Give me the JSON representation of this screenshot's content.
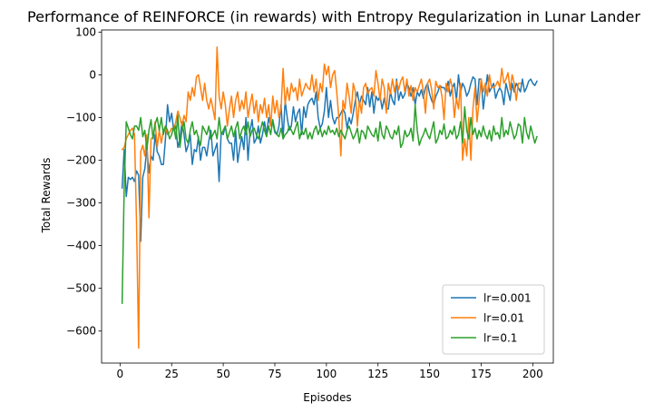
{
  "chart_data": {
    "type": "line",
    "title": "Performance of REINFORCE (in rewards) with Entropy Regularization in Lunar Lander",
    "xlabel": "Episodes",
    "ylabel": "Total Rewards",
    "xlim": [
      -8.95,
      209.95
    ],
    "ylim": [
      -675,
      105
    ],
    "xticks": [
      0,
      25,
      50,
      75,
      100,
      125,
      150,
      175,
      200
    ],
    "yticks": [
      -600,
      -500,
      -400,
      -300,
      -200,
      -100,
      0,
      100
    ],
    "ytick_labels": [
      "−600",
      "−500",
      "−400",
      "−300",
      "−200",
      "−100",
      "0",
      "100"
    ],
    "grid": false,
    "legend_position": "lower right",
    "series": [
      {
        "name": "lr=0.001",
        "color": "#1f77b4",
        "x_start": 1,
        "values": [
          -265,
          -175,
          -285,
          -240,
          -245,
          -240,
          -250,
          -225,
          -235,
          -390,
          -240,
          -220,
          -170,
          -230,
          -190,
          -200,
          -140,
          -180,
          -190,
          -210,
          -210,
          -150,
          -70,
          -110,
          -90,
          -130,
          -120,
          -170,
          -150,
          -110,
          -140,
          -180,
          -165,
          -140,
          -210,
          -175,
          -180,
          -145,
          -200,
          -170,
          -170,
          -190,
          -155,
          -130,
          -190,
          -175,
          -160,
          -250,
          -135,
          -140,
          -120,
          -150,
          -160,
          -160,
          -200,
          -130,
          -205,
          -170,
          -145,
          -175,
          -100,
          -200,
          -130,
          -105,
          -160,
          -150,
          -120,
          -160,
          -140,
          -110,
          -140,
          -100,
          -120,
          -110,
          -135,
          -140,
          -120,
          -70,
          -150,
          -60,
          -100,
          -130,
          -120,
          -75,
          -110,
          -90,
          -80,
          -140,
          -75,
          -100,
          -70,
          -60,
          -55,
          -70,
          -40,
          -100,
          -125,
          -115,
          -85,
          -30,
          -100,
          -60,
          -100,
          -115,
          -100,
          -100,
          -90,
          -80,
          -90,
          -125,
          -100,
          -115,
          -90,
          -60,
          -40,
          -70,
          -50,
          -60,
          -70,
          -30,
          -75,
          -40,
          -90,
          -50,
          -60,
          -50,
          -80,
          -55,
          -80,
          -80,
          -40,
          -60,
          -70,
          -10,
          -60,
          -40,
          -55,
          -45,
          -20,
          -30,
          -50,
          -30,
          -70,
          -40,
          -50,
          -35,
          -55,
          -30,
          -20,
          -45,
          -60,
          -70,
          -50,
          -40,
          -25,
          -30,
          -30,
          -40,
          -15,
          -50,
          -30,
          -20,
          -60,
          0,
          -40,
          -20,
          -30,
          -50,
          -40,
          -20,
          -5,
          -10,
          -70,
          -10,
          -10,
          -80,
          -40,
          0,
          -40,
          -30,
          -20,
          -55,
          -40,
          -30,
          -40,
          -70,
          -20,
          -40,
          -60,
          -20,
          -40,
          -20,
          -30,
          -40,
          -10,
          -40,
          -30,
          -15,
          -10,
          -20,
          -25,
          -15
        ]
      },
      {
        "name": "lr=0.01",
        "color": "#ff7f0e",
        "x_start": 1,
        "values": [
          -175,
          -170,
          -150,
          -140,
          -130,
          -125,
          -140,
          -350,
          -640,
          -180,
          -165,
          -190,
          -140,
          -335,
          -150,
          -145,
          -110,
          -170,
          -130,
          -160,
          -130,
          -120,
          -140,
          -135,
          -125,
          -130,
          -110,
          -85,
          -100,
          -120,
          -95,
          -110,
          -40,
          -60,
          -30,
          -50,
          -5,
          0,
          -30,
          -60,
          -20,
          -60,
          -80,
          -55,
          -80,
          -105,
          65,
          -50,
          -80,
          -40,
          -70,
          -120,
          -80,
          -50,
          -100,
          -60,
          -40,
          -85,
          -60,
          -80,
          -40,
          -100,
          -70,
          -45,
          -90,
          -60,
          -110,
          -70,
          -90,
          -55,
          -100,
          -70,
          -120,
          -50,
          -90,
          -60,
          -100,
          -80,
          15,
          -70,
          -30,
          -60,
          -20,
          -40,
          -30,
          -60,
          -10,
          -50,
          -35,
          -20,
          -30,
          -35,
          0,
          -40,
          -10,
          -60,
          -20,
          -40,
          25,
          0,
          20,
          -30,
          0,
          10,
          -40,
          -100,
          -190,
          -60,
          -80,
          -20,
          -50,
          -90,
          -20,
          -40,
          -120,
          -60,
          -90,
          -30,
          -20,
          -45,
          -35,
          -30,
          -50,
          10,
          -20,
          -60,
          -10,
          -30,
          -90,
          -20,
          -45,
          -10,
          -40,
          -15,
          -35,
          -15,
          -5,
          -40,
          -10,
          -50,
          -25,
          -60,
          -30,
          -40,
          -25,
          -10,
          -40,
          -90,
          -20,
          -10,
          -35,
          -80,
          -15,
          -30,
          -25,
          -50,
          -105,
          -20,
          -40,
          -10,
          -30,
          -100,
          -55,
          -80,
          -20,
          -200,
          -150,
          -190,
          -100,
          -200,
          -80,
          -30,
          -110,
          -60,
          -10,
          -40,
          -20,
          -50,
          0,
          -30,
          -30,
          -25,
          -15,
          -30,
          15,
          -20,
          -10,
          5,
          -35,
          0,
          -20,
          -60,
          -20,
          -20
        ]
      },
      {
        "name": "lr=0.1",
        "color": "#2ca02c",
        "x_start": 1,
        "values": [
          -535,
          -265,
          -110,
          -125,
          -140,
          -150,
          -120,
          -120,
          -130,
          -100,
          -145,
          -130,
          -175,
          -130,
          -105,
          -150,
          -115,
          -100,
          -130,
          -100,
          -140,
          -120,
          -130,
          -150,
          -140,
          -120,
          -150,
          -95,
          -170,
          -130,
          -110,
          -150,
          -160,
          -130,
          -110,
          -140,
          -130,
          -150,
          -165,
          -120,
          -130,
          -140,
          -120,
          -150,
          -140,
          -130,
          -150,
          -100,
          -140,
          -130,
          -120,
          -150,
          -135,
          -120,
          -145,
          -125,
          -110,
          -150,
          -130,
          -120,
          -140,
          -110,
          -145,
          -130,
          -125,
          -140,
          -150,
          -130,
          -110,
          -130,
          -145,
          -120,
          -140,
          -105,
          -130,
          -140,
          -145,
          -125,
          -150,
          -140,
          -135,
          -120,
          -130,
          -140,
          -125,
          -110,
          -150,
          -130,
          -140,
          -125,
          -150,
          -135,
          -150,
          -130,
          -120,
          -140,
          -125,
          -145,
          -130,
          -140,
          -120,
          -135,
          -130,
          -140,
          -125,
          -145,
          -130,
          -140,
          -150,
          -130,
          -120,
          -135,
          -150,
          -140,
          -125,
          -160,
          -130,
          -135,
          -150,
          -120,
          -130,
          -140,
          -145,
          -125,
          -155,
          -110,
          -140,
          -150,
          -120,
          -130,
          -145,
          -150,
          -130,
          -140,
          -120,
          -170,
          -160,
          -130,
          -145,
          -140,
          -125,
          -155,
          -70,
          -130,
          -165,
          -150,
          -140,
          -125,
          -140,
          -150,
          -130,
          -110,
          -160,
          -150,
          -130,
          -140,
          -115,
          -150,
          -145,
          -130,
          -140,
          -120,
          -150,
          -140,
          -110,
          -160,
          -75,
          -130,
          -150,
          -100,
          -140,
          -125,
          -150,
          -130,
          -145,
          -120,
          -140,
          -150,
          -130,
          -155,
          -120,
          -140,
          -135,
          -150,
          -100,
          -145,
          -130,
          -140,
          -110,
          -130,
          -150,
          -140,
          -115,
          -120,
          -160,
          -100,
          -135,
          -150,
          -120,
          -140,
          -160,
          -145
        ]
      }
    ]
  }
}
